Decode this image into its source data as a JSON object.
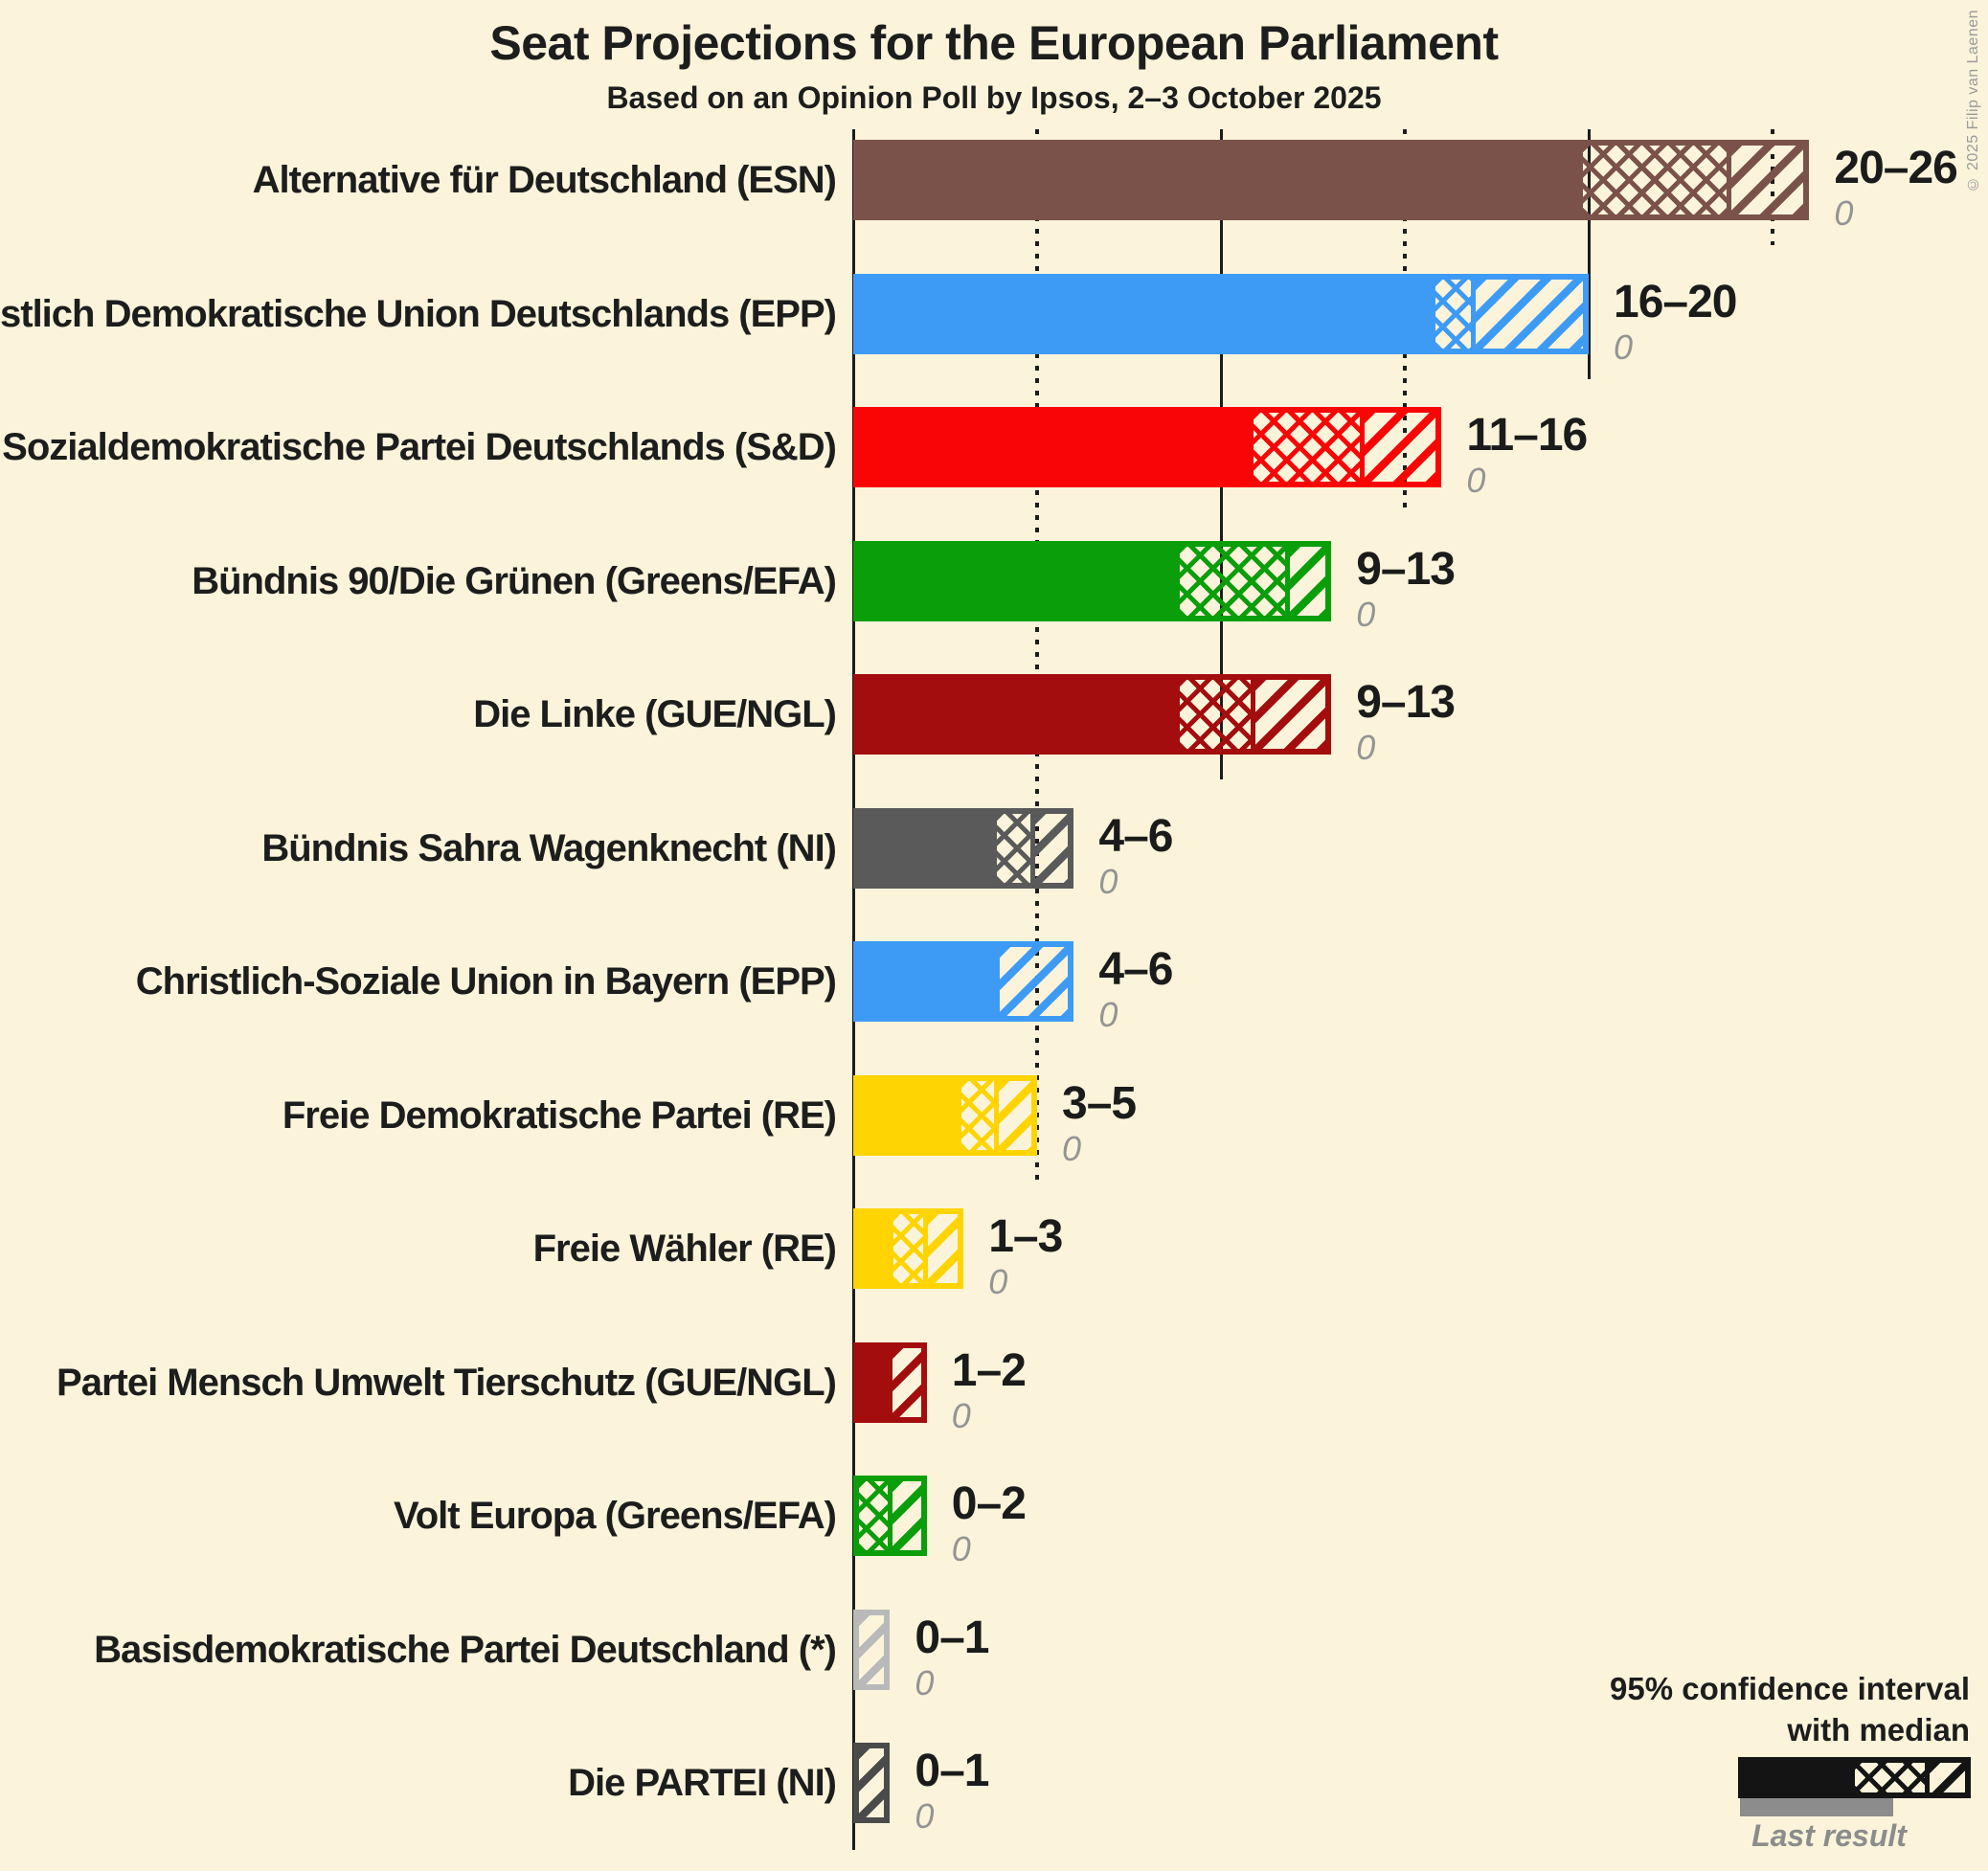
{
  "title": "Seat Projections for the European Parliament",
  "subtitle": "Based on an Opinion Poll by Ipsos, 2–3 October 2025",
  "copyright": "© 2025 Filip van Laenen",
  "legend": {
    "line1": "95% confidence interval",
    "line2": "with median",
    "last_result_label": "Last result",
    "sample_color": "#141414",
    "last_result_color": "#8C8C8C"
  },
  "colors": {
    "background": "#FBF4DB",
    "text": "#1D1D1D",
    "muted_text": "#949494",
    "gridline": "#1C1C1C"
  },
  "chart_data": {
    "type": "bar",
    "orientation": "horizontal",
    "unit": "seats",
    "x_range": [
      0,
      26
    ],
    "gridlines": [
      {
        "value": 0,
        "style": "solid",
        "is_axis": true
      },
      {
        "value": 5,
        "style": "dotted"
      },
      {
        "value": 10,
        "style": "solid"
      },
      {
        "value": 15,
        "style": "dotted"
      },
      {
        "value": 20,
        "style": "solid"
      },
      {
        "value": 25,
        "style": "dotted"
      }
    ],
    "pattern_semantics": {
      "solid": "0 to lower bound of 95% confidence interval",
      "crosshatch": "lower bound to median",
      "diagonal": "median to upper bound"
    },
    "parties": [
      {
        "label": "Alternative für Deutschland (ESN)",
        "range_label": "20–26",
        "ci_low": 20,
        "median": 24,
        "ci_high": 26,
        "last_result": 0,
        "color": "#7B5249"
      },
      {
        "label": "Christlich Demokratische Union Deutschlands (EPP)",
        "range_label": "16–20",
        "ci_low": 16,
        "median": 17,
        "ci_high": 20,
        "last_result": 0,
        "color": "#3E9BF5"
      },
      {
        "label": "Sozialdemokratische Partei Deutschlands (S&D)",
        "range_label": "11–16",
        "ci_low": 11,
        "median": 14,
        "ci_high": 16,
        "last_result": 0,
        "color": "#FA0505"
      },
      {
        "label": "Bündnis 90/Die Grünen (Greens/EFA)",
        "range_label": "9–13",
        "ci_low": 9,
        "median": 12,
        "ci_high": 13,
        "last_result": 0,
        "color": "#0A9E0A"
      },
      {
        "label": "Die Linke (GUE/NGL)",
        "range_label": "9–13",
        "ci_low": 9,
        "median": 11,
        "ci_high": 13,
        "last_result": 0,
        "color": "#A30D0D"
      },
      {
        "label": "Bündnis Sahra Wagenknecht (NI)",
        "range_label": "4–6",
        "ci_low": 4,
        "median": 5,
        "ci_high": 6,
        "last_result": 0,
        "color": "#5A5A5A"
      },
      {
        "label": "Christlich-Soziale Union in Bayern (EPP)",
        "range_label": "4–6",
        "ci_low": 4,
        "median": 4,
        "ci_high": 6,
        "last_result": 0,
        "color": "#3E9BF5"
      },
      {
        "label": "Freie Demokratische Partei (RE)",
        "range_label": "3–5",
        "ci_low": 3,
        "median": 4,
        "ci_high": 5,
        "last_result": 0,
        "color": "#FFD400"
      },
      {
        "label": "Freie Wähler (RE)",
        "range_label": "1–3",
        "ci_low": 1,
        "median": 2,
        "ci_high": 3,
        "last_result": 0,
        "color": "#FFD400"
      },
      {
        "label": "Partei Mensch Umwelt Tierschutz (GUE/NGL)",
        "range_label": "1–2",
        "ci_low": 1,
        "median": 1,
        "ci_high": 2,
        "last_result": 0,
        "color": "#A30D0D"
      },
      {
        "label": "Volt Europa (Greens/EFA)",
        "range_label": "0–2",
        "ci_low": 0,
        "median": 1,
        "ci_high": 2,
        "last_result": 0,
        "color": "#0A9E0A"
      },
      {
        "label": "Basisdemokratische Partei Deutschland (*)",
        "range_label": "0–1",
        "ci_low": 0,
        "median": 0,
        "ci_high": 1,
        "last_result": 0,
        "color": "#B9B9B9"
      },
      {
        "label": "Die PARTEI (NI)",
        "range_label": "0–1",
        "ci_low": 0,
        "median": 0,
        "ci_high": 1,
        "last_result": 0,
        "color": "#4B4B4B"
      }
    ]
  }
}
